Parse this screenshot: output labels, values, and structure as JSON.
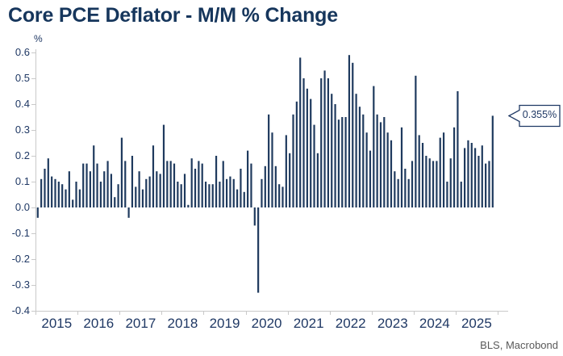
{
  "title": "Core PCE Deflator - M/M % Change",
  "unit_label": "%",
  "source": "BLS, Macrobond",
  "callout": {
    "text": "0.355%"
  },
  "colors": {
    "bar": "#1f3a5e",
    "title_text": "#16365c",
    "axis_text": "#1f3864",
    "axis_line": "#c9c9c9",
    "source_text": "#595959",
    "callout_border": "#1f3864",
    "callout_fill": "#ffffff"
  },
  "chart_data": {
    "type": "bar",
    "title": "Core PCE Deflator - M/M % Change",
    "xlabel": "",
    "ylabel": "%",
    "ylim": [
      -0.4,
      0.6
    ],
    "yticks": [
      0.6,
      0.5,
      0.4,
      0.3,
      0.2,
      0.1,
      0.0,
      -0.1,
      -0.2,
      -0.3,
      -0.4
    ],
    "grid": false,
    "legend": "none",
    "frequency": "monthly",
    "x_start": "2015-01",
    "x_end": "2025-11",
    "year_labels": [
      "2015",
      "2016",
      "2017",
      "2018",
      "2019",
      "2020",
      "2021",
      "2022",
      "2023",
      "2024",
      "2025"
    ],
    "last_point_annotation": "0.355%",
    "values": [
      -0.04,
      0.11,
      0.15,
      0.19,
      0.12,
      0.11,
      0.1,
      0.09,
      0.07,
      0.14,
      0.03,
      0.1,
      0.07,
      0.17,
      0.17,
      0.14,
      0.24,
      0.17,
      0.1,
      0.14,
      0.18,
      0.13,
      0.04,
      0.09,
      0.27,
      0.18,
      -0.04,
      0.2,
      0.08,
      0.14,
      0.07,
      0.11,
      0.12,
      0.24,
      0.14,
      0.13,
      0.32,
      0.18,
      0.18,
      0.17,
      0.1,
      0.09,
      0.13,
      0.01,
      0.19,
      0.15,
      0.18,
      0.17,
      0.1,
      0.09,
      0.09,
      0.2,
      0.1,
      0.18,
      0.11,
      0.12,
      0.11,
      0.07,
      0.15,
      0.06,
      0.22,
      0.17,
      -0.07,
      -0.33,
      0.11,
      0.16,
      0.36,
      0.29,
      0.16,
      0.09,
      0.08,
      0.28,
      0.21,
      0.36,
      0.41,
      0.58,
      0.5,
      0.46,
      0.42,
      0.32,
      0.21,
      0.5,
      0.53,
      0.5,
      0.44,
      0.4,
      0.34,
      0.35,
      0.35,
      0.59,
      0.56,
      0.44,
      0.39,
      0.36,
      0.29,
      0.22,
      0.47,
      0.36,
      0.33,
      0.35,
      0.29,
      0.26,
      0.14,
      0.11,
      0.31,
      0.15,
      0.11,
      0.18,
      0.51,
      0.28,
      0.25,
      0.2,
      0.19,
      0.18,
      0.18,
      0.27,
      0.29,
      0.1,
      0.19,
      0.31,
      0.45,
      0.1,
      0.23,
      0.26,
      0.25,
      0.23,
      0.2,
      0.24,
      0.17,
      0.18,
      0.355
    ],
    "source": "BLS, Macrobond"
  }
}
